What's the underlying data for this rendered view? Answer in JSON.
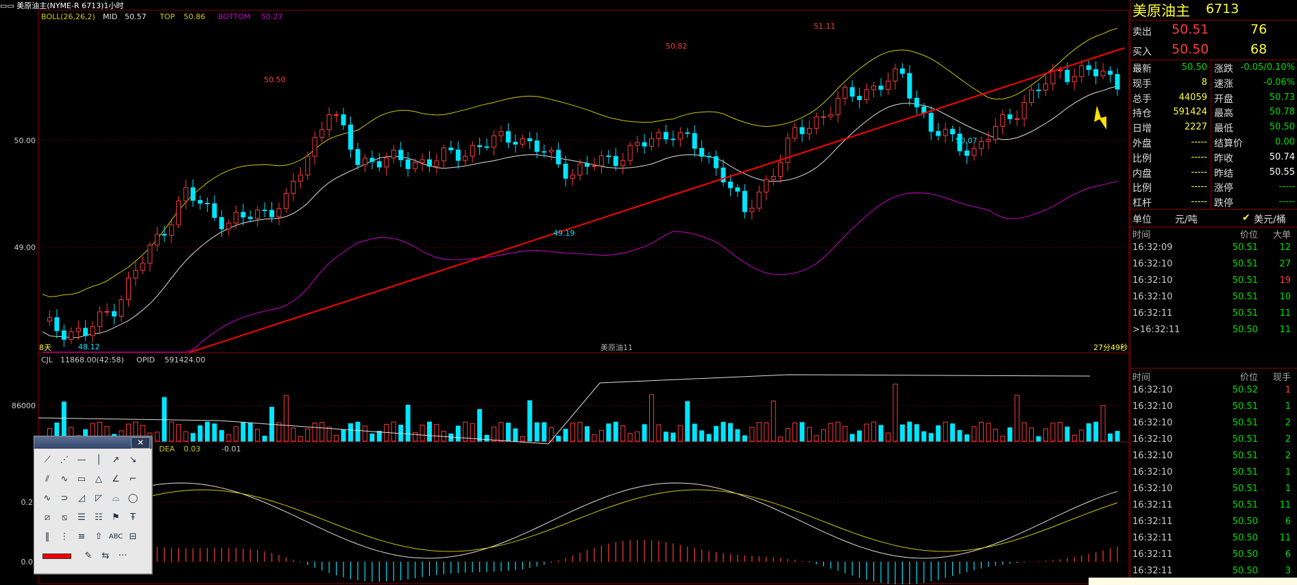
{
  "window": {
    "title": "美原油主(NYME-R 6713)1小时"
  },
  "main_chart": {
    "indicator_name": "BOLL(26,26,2)",
    "mid_label": "MID",
    "mid_value": "50.57",
    "top_label": "TOP",
    "top_value": "50.86",
    "bottom_label": "BOTTOM",
    "bottom_value": "50.27",
    "y_ticks": [
      "50.00",
      "49.00"
    ],
    "annotations": {
      "hi1": "50.50",
      "hi2": "50.82",
      "hi3": "51.11",
      "lo1": "48.12",
      "lo2": "49.19",
      "lo3": "50.07"
    },
    "bottom_left": "8天",
    "bottom_center": "美原油11",
    "bottom_right": "27分49秒"
  },
  "volume_chart": {
    "cjl_label": "CJL",
    "cjl_value": "11868.00(42:58)",
    "opid_label": "OPID",
    "opid_value": "591424.00",
    "y_tick": "86000"
  },
  "macd_chart": {
    "dea_label": "DEA",
    "dea_value": "0.03",
    "extra_value": "-0.01",
    "y_ticks": [
      "0.2",
      "0.0"
    ]
  },
  "quote": {
    "name": "美原油主",
    "code": "6713",
    "sell_label": "卖出",
    "sell_price": "50.51",
    "sell_qty": "76",
    "buy_label": "买入",
    "buy_price": "50.50",
    "buy_qty": "68",
    "left_rows": [
      {
        "label": "最新",
        "value": "50.50",
        "color": "green"
      },
      {
        "label": "现手",
        "value": "8",
        "color": "yellow"
      },
      {
        "label": "总手",
        "value": "44059",
        "color": "yellow"
      },
      {
        "label": "持仓",
        "value": "591424",
        "color": "yellow"
      },
      {
        "label": "日增",
        "value": "2227",
        "color": "yellow"
      },
      {
        "label": "外盘",
        "value": "-----",
        "color": "yellow"
      },
      {
        "label": "比例",
        "value": "-----",
        "color": "yellow"
      },
      {
        "label": "内盘",
        "value": "-----",
        "color": "yellow"
      },
      {
        "label": "比例",
        "value": "-----",
        "color": "yellow"
      },
      {
        "label": "杠杆",
        "value": "-----",
        "color": "yellow"
      }
    ],
    "right_rows": [
      {
        "label": "涨跌",
        "value": "-0.05/0.10%",
        "color": "green"
      },
      {
        "label": "速涨",
        "value": "-0.06%",
        "color": "green"
      },
      {
        "label": "开盘",
        "value": "50.73",
        "color": "green"
      },
      {
        "label": "最高",
        "value": "50.78",
        "color": "green"
      },
      {
        "label": "最低",
        "value": "50.50",
        "color": "green"
      },
      {
        "label": "结算价",
        "value": "0.00",
        "color": "green"
      },
      {
        "label": "昨收",
        "value": "50.74",
        "color": "white"
      },
      {
        "label": "昨结",
        "value": "50.55",
        "color": "white"
      },
      {
        "label": "涨停",
        "value": "-----",
        "color": "green"
      },
      {
        "label": "跌停",
        "value": "-----",
        "color": "green"
      }
    ],
    "unit_label": "单位",
    "unit_value": "元/吨",
    "unit_alt": "美元/桶"
  },
  "big_trades": {
    "headers": [
      "时间",
      "价位",
      "大单"
    ],
    "rows": [
      {
        "time": "16:32:09",
        "price": "50.51",
        "qty": "12",
        "color": "green"
      },
      {
        "time": "16:32:10",
        "price": "50.51",
        "qty": "27",
        "color": "green"
      },
      {
        "time": "16:32:10",
        "price": "50.51",
        "qty": "19",
        "color": "red"
      },
      {
        "time": "16:32:10",
        "price": "50.51",
        "qty": "10",
        "color": "green"
      },
      {
        "time": "16:32:11",
        "price": "50.51",
        "qty": "11",
        "color": "green"
      },
      {
        "time": ">16:32:11",
        "price": "50.50",
        "qty": "11",
        "color": "green"
      }
    ]
  },
  "ticks": {
    "headers": [
      "时间",
      "价位",
      "现手"
    ],
    "rows": [
      {
        "time": "16:32:10",
        "price": "50.52",
        "qty": "1",
        "color": "red"
      },
      {
        "time": "16:32:10",
        "price": "50.51",
        "qty": "1",
        "color": "green"
      },
      {
        "time": "16:32:10",
        "price": "50.51",
        "qty": "2",
        "color": "green"
      },
      {
        "time": "16:32:10",
        "price": "50.51",
        "qty": "2",
        "color": "green"
      },
      {
        "time": "16:32:10",
        "price": "50.51",
        "qty": "2",
        "color": "green"
      },
      {
        "time": "16:32:10",
        "price": "50.51",
        "qty": "1",
        "color": "green"
      },
      {
        "time": "16:32:10",
        "price": "50.51",
        "qty": "1",
        "color": "green"
      },
      {
        "time": "16:32:11",
        "price": "50.51",
        "qty": "11",
        "color": "green"
      },
      {
        "time": "16:32:11",
        "price": "50.50",
        "qty": "6",
        "color": "green"
      },
      {
        "time": "16:32:11",
        "price": "50.50",
        "qty": "11",
        "color": "green"
      },
      {
        "time": "16:32:11",
        "price": "50.50",
        "qty": "6",
        "color": "green"
      },
      {
        "time": "16:32:11",
        "price": "50.50",
        "qty": "3",
        "color": "green"
      }
    ]
  },
  "toolbox": {
    "close_label": "✕",
    "text_tool": "ABC",
    "more_label": "···"
  },
  "colors": {
    "up": "#ff3b3b",
    "down": "#00e5ff",
    "boll_upper": "#cccc00",
    "boll_mid": "#e0e0e0",
    "boll_lower": "#cc00cc",
    "trendline": "#ff0000",
    "border": "#8b0000"
  }
}
